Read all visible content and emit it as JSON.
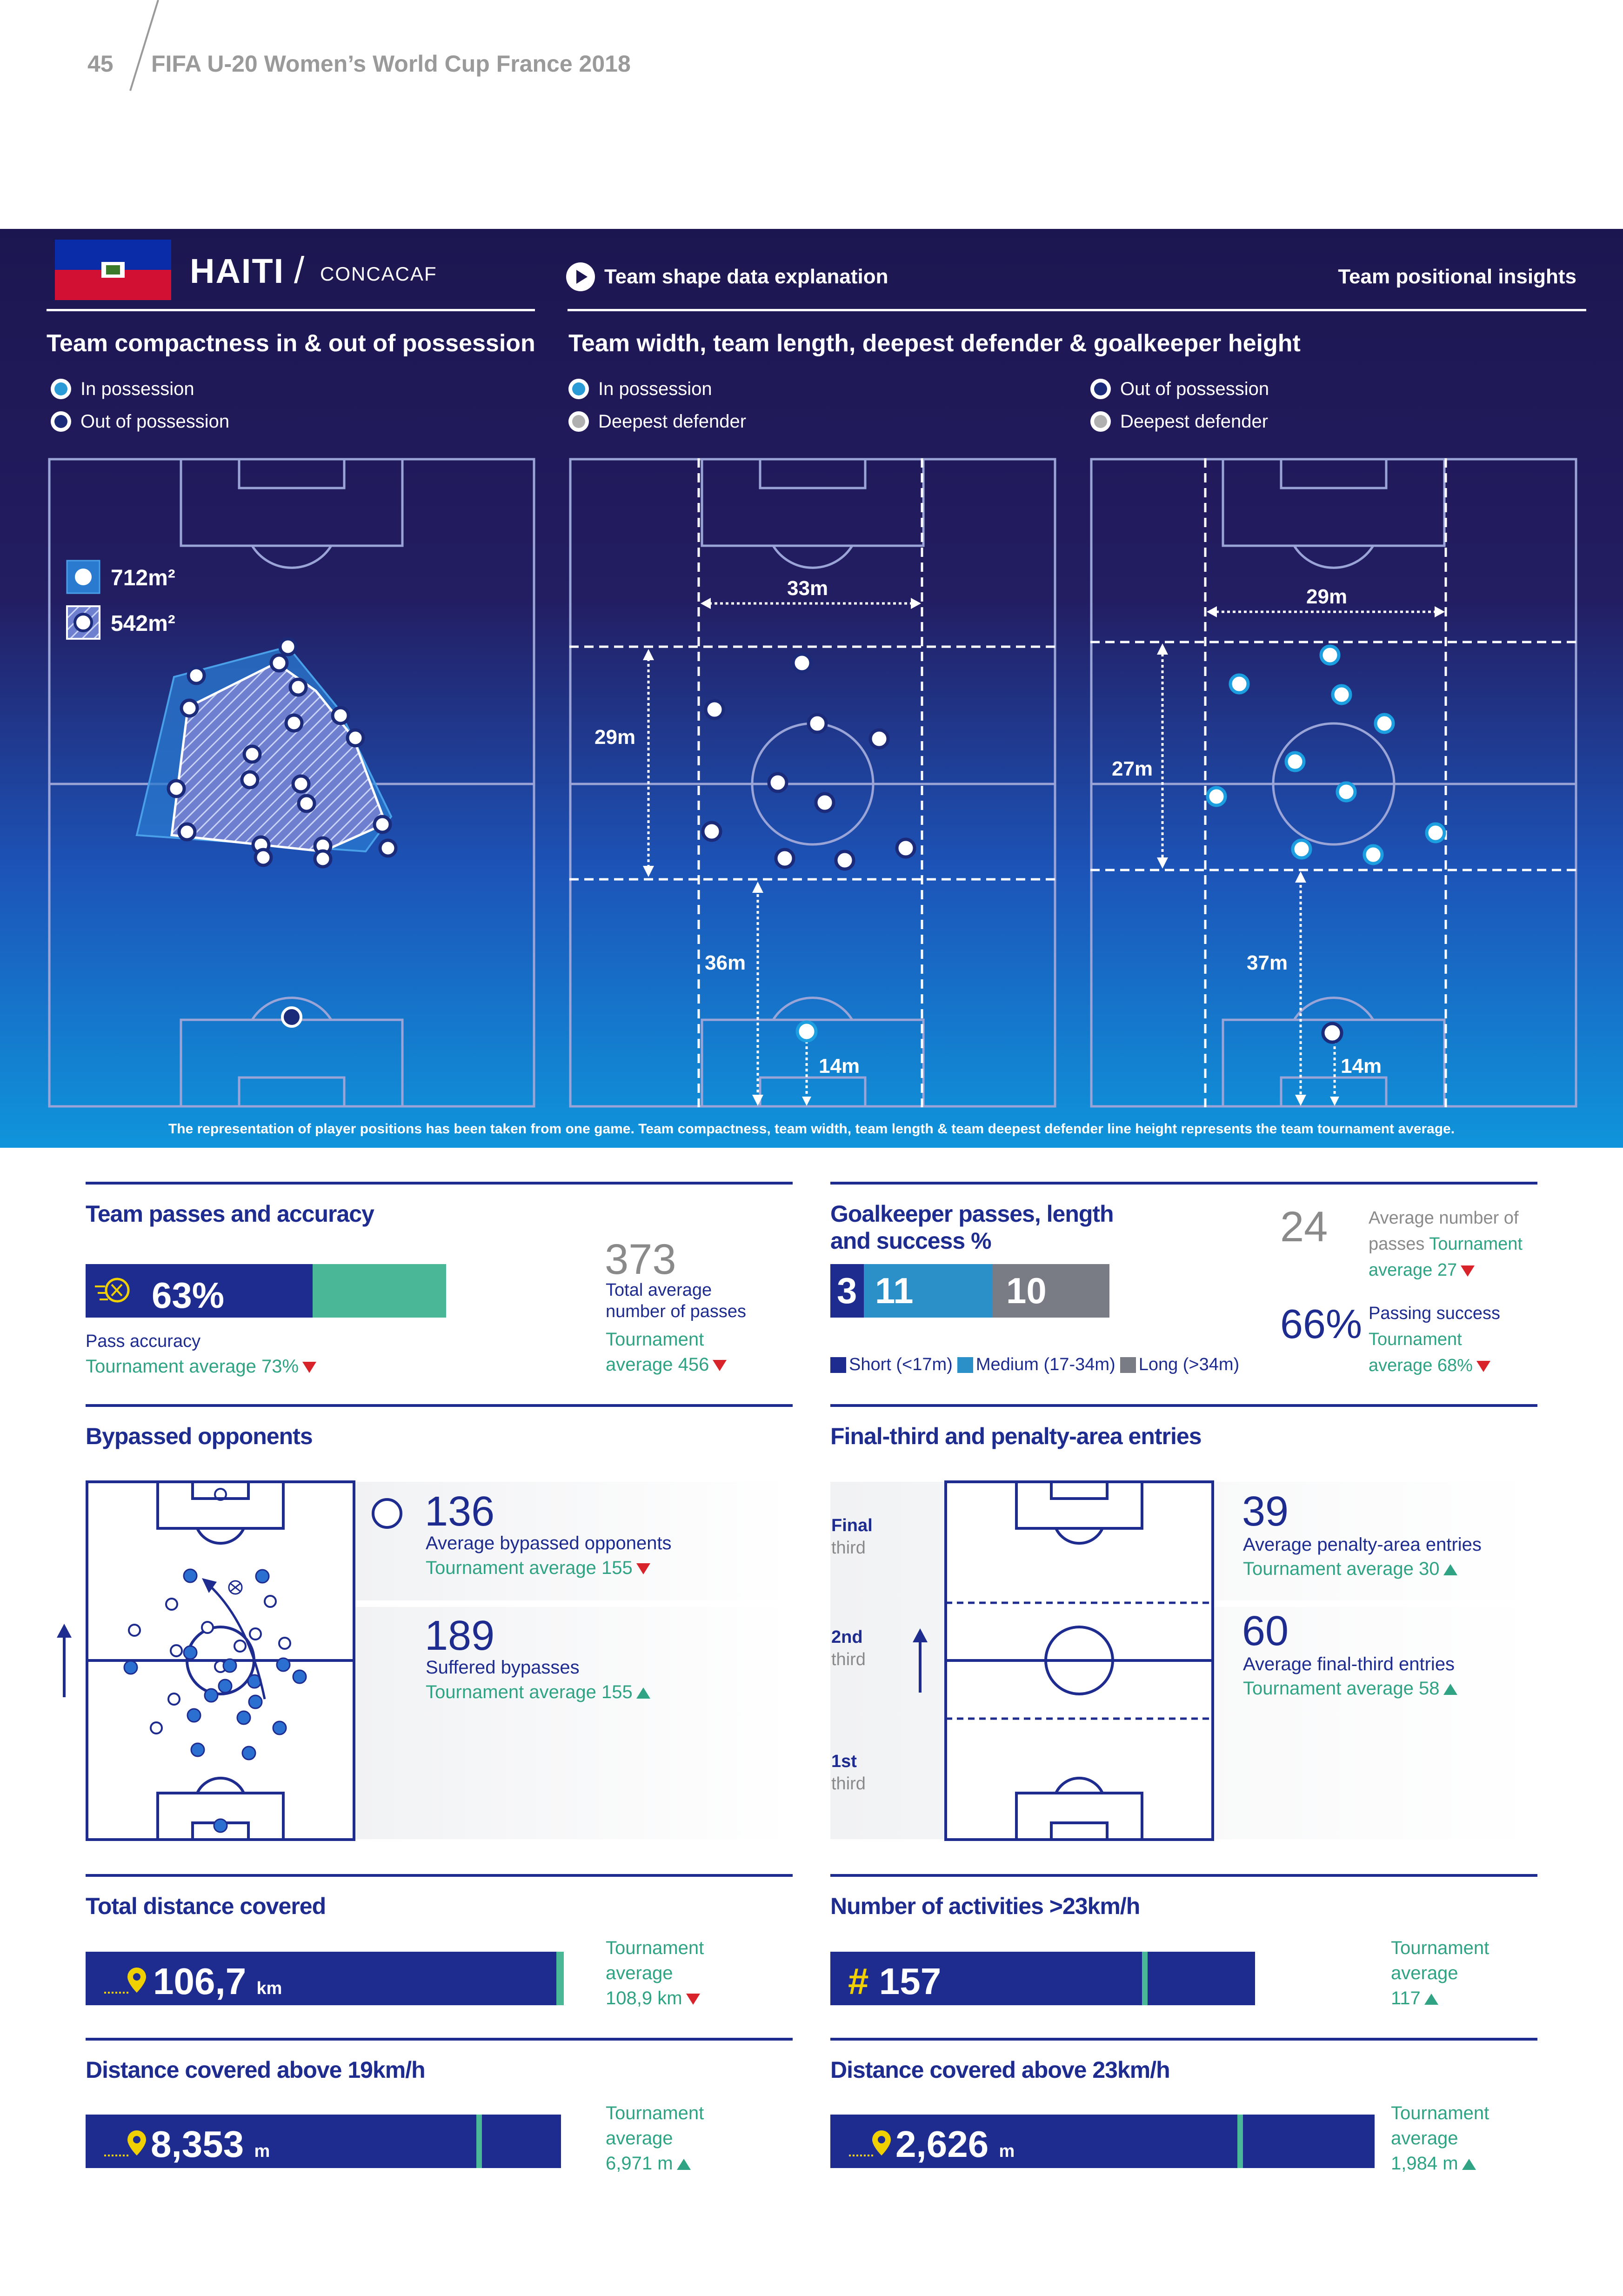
{
  "page": {
    "number": "45",
    "title": "FIFA U-20 Women’s World Cup France 2018"
  },
  "header": {
    "team": "HAITI",
    "separator": "/",
    "confederation": "CONCACAF",
    "explanation_link": "Team shape data explanation",
    "insights_title": "Team positional insights",
    "compactness_title": "Team compactness in & out of possession",
    "shape_title": "Team width, team length, deepest defender & goalkeeper height",
    "legend_in_possession": "In possession",
    "legend_out_possession": "Out of possession",
    "legend_deepest": "Deepest defender",
    "area_in": "712m²",
    "area_out": "542m²",
    "in_width": "33m",
    "in_length": "29m",
    "in_deepest": "36m",
    "in_gk": "14m",
    "out_width": "29m",
    "out_length": "27m",
    "out_deepest": "37m",
    "out_gk": "14m",
    "footnote": "The representation of player positions has been taken from one game. Team compactness, team width, team length & team deepest defender line height represents the team tournament average."
  },
  "passes": {
    "title": "Team passes and accuracy",
    "accuracy_value": "63%",
    "accuracy_fraction": 0.63,
    "accuracy_label": "Pass accuracy",
    "accuracy_tournament": "Tournament average 73%",
    "total_value": "373",
    "total_label": "Total average number of passes",
    "total_tournament_1": "Tournament",
    "total_tournament_2": "average 456"
  },
  "goalkeeper": {
    "title": "Goalkeeper passes, length and success %",
    "short": "3",
    "medium": "11",
    "long": "10",
    "legend_short": "Short (<17m)",
    "legend_medium": "Medium (17-34m)",
    "legend_long": "Long (>34m)",
    "avg_passes_value": "24",
    "avg_passes_label_1": "Average number of",
    "avg_passes_label_2": "passes",
    "avg_passes_tournament_1": "Tournament",
    "avg_passes_tournament_2": "average 27",
    "success_value": "66%",
    "success_label": "Passing success",
    "success_tournament_1": "Tournament",
    "success_tournament_2": "average 68%"
  },
  "bypassed": {
    "title": "Bypassed opponents",
    "avg_value": "136",
    "avg_label": "Average bypassed opponents",
    "avg_tournament": "Tournament average 155",
    "suffered_value": "189",
    "suffered_label": "Suffered bypasses",
    "suffered_tournament": "Tournament average 155"
  },
  "entries": {
    "title": "Final-third and penalty-area entries",
    "zone_final_1": "Final",
    "zone_final_2": "third",
    "zone_second_1": "2nd",
    "zone_second_2": "third",
    "zone_first_1": "1st",
    "zone_first_2": "third",
    "penalty_value": "39",
    "penalty_label": "Average penalty-area entries",
    "penalty_tournament": "Tournament average 30",
    "final_value": "60",
    "final_label": "Average final-third entries",
    "final_tournament": "Tournament average 58"
  },
  "distance": {
    "title": "Total distance covered",
    "value": "106,7",
    "unit": "km",
    "tournament_1": "Tournament",
    "tournament_2": "average",
    "tournament_3": "108,9 km"
  },
  "activities": {
    "title": "Number of activities >23km/h",
    "value": "157",
    "prefix": "#",
    "tournament_1": "Tournament",
    "tournament_2": "average",
    "tournament_3": "117"
  },
  "dist19": {
    "title": "Distance covered above 19km/h",
    "value": "8,353",
    "unit": "m",
    "tournament_1": "Tournament",
    "tournament_2": "average",
    "tournament_3": "6,971 m"
  },
  "dist23": {
    "title": "Distance covered above 23km/h",
    "value": "2,626",
    "unit": "m",
    "tournament_1": "Tournament",
    "tournament_2": "average",
    "tournament_3": "1,984 m"
  },
  "colors": {
    "navy": "#1e2b8f",
    "green": "#2fa383",
    "red": "#d8232a",
    "medium_blue": "#2b8fc8",
    "grey": "#7a7c85",
    "header_top": "#1c1650",
    "header_bottom": "#0d8fd6"
  },
  "icons": [
    "play-icon",
    "location-pin-icon",
    "ball-icon",
    "haiti-flag-icon",
    "arrow-up-icon"
  ]
}
